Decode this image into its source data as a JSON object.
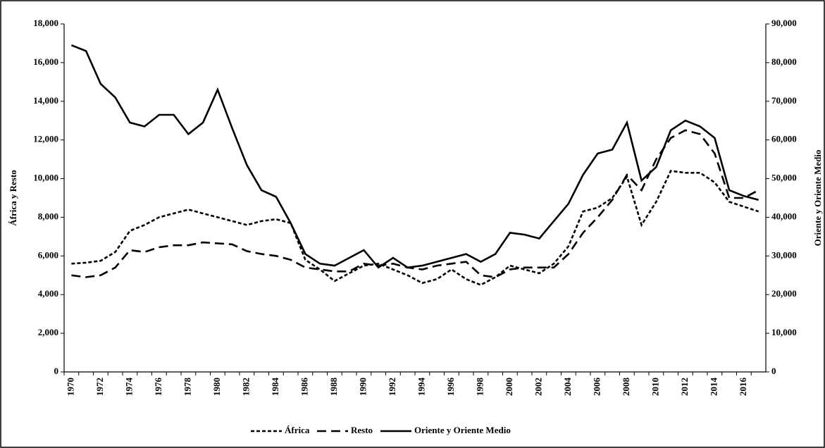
{
  "chart_data": {
    "type": "line",
    "y_label": "África y Resto",
    "y2_label": "Oriente y Oriente Medio",
    "categories": [
      "1970",
      null,
      "1972",
      null,
      "1974",
      null,
      "1976",
      null,
      "1978",
      null,
      "1980",
      null,
      "1982",
      null,
      "1984",
      null,
      "1986",
      null,
      "1988",
      null,
      "1990",
      null,
      "1992",
      null,
      "1994",
      null,
      "1996",
      null,
      "1998",
      null,
      "2000",
      null,
      "2002",
      null,
      "2004",
      null,
      "2006",
      null,
      "2008",
      null,
      "2010",
      null,
      "2012",
      null,
      "2014",
      null,
      "2016",
      null
    ],
    "ylim": [
      0,
      18000
    ],
    "yticks": [
      0,
      {
        "value": 2000,
        "label": "2,000"
      },
      {
        "value": 4000,
        "label": "4,000"
      },
      {
        "value": 6000,
        "label": "6,000"
      },
      {
        "value": 8000,
        "label": "8,000"
      },
      {
        "value": 10000,
        "label": "10,000"
      },
      {
        "value": 12000,
        "label": "12,000"
      },
      {
        "value": 14000,
        "label": "14,000"
      },
      {
        "value": 16000,
        "label": "16,000"
      },
      {
        "value": 18000,
        "label": "18,000"
      }
    ],
    "y2lim": [
      0,
      90000
    ],
    "y2ticks": [
      0,
      {
        "value": 10000,
        "label": "10,000"
      },
      {
        "value": 20000,
        "label": "20,000"
      },
      {
        "value": 30000,
        "label": "30,000"
      },
      {
        "value": 40000,
        "label": "40,000"
      },
      {
        "value": 50000,
        "label": "50,000"
      },
      {
        "value": 60000,
        "label": "60,000"
      },
      {
        "value": 70000,
        "label": "70,000"
      },
      {
        "value": 80000,
        "label": "80,000"
      },
      {
        "value": 90000,
        "label": "90,000"
      }
    ],
    "legend": "bottom",
    "series": [
      {
        "name": "África",
        "color": "#000000",
        "style": "dotted",
        "values": [
          5600,
          5650,
          5750,
          6200,
          7300,
          7600,
          8000,
          8200,
          8400,
          8200,
          8000,
          7800,
          7600,
          7800,
          7900,
          7700,
          5800,
          5300,
          4700,
          5100,
          5500,
          5600,
          5300,
          5000,
          4600,
          4800,
          5300,
          4800,
          4500,
          4900,
          5500,
          5300,
          5100,
          5600,
          6500,
          8300,
          8500,
          9000,
          10100,
          7600,
          8800,
          10400,
          10300,
          10300,
          9800,
          8800,
          8550,
          8300
        ]
      },
      {
        "name": "Resto",
        "color": "#000000",
        "style": "dashed",
        "values": [
          5000,
          4900,
          5000,
          5400,
          6300,
          6200,
          6450,
          6550,
          6550,
          6700,
          6650,
          6600,
          6250,
          6100,
          6000,
          5800,
          5400,
          5300,
          5200,
          5200,
          5600,
          5500,
          5600,
          5400,
          5300,
          5500,
          5600,
          5700,
          5000,
          4900,
          5300,
          5400,
          5400,
          5400,
          6100,
          7200,
          8000,
          8900,
          10200,
          9400,
          11000,
          12100,
          12500,
          12300,
          11300,
          9000,
          9000,
          9400
        ]
      },
      {
        "name": "Oriente y Oriente Medio",
        "color": "#000000",
        "style": "solid",
        "axis": "y2",
        "values": [
          84500,
          83000,
          74500,
          71000,
          64500,
          63500,
          66500,
          66500,
          61500,
          64500,
          73000,
          63000,
          53500,
          47000,
          45300,
          38500,
          30500,
          28000,
          27500,
          29500,
          31500,
          27000,
          29500,
          27000,
          27500,
          28500,
          29500,
          30500,
          28500,
          30500,
          36000,
          35500,
          34500,
          39000,
          43500,
          51000,
          56500,
          57500,
          64500,
          49500,
          53000,
          62500,
          65000,
          63500,
          60500,
          47000,
          45500,
          44500
        ]
      }
    ]
  }
}
